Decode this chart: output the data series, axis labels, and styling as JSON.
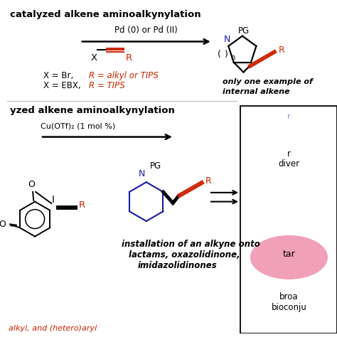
{
  "bg_color": "#ffffff",
  "title_top": "catalyzed alkene aminoalkynylation",
  "title_bottom": "yzed alkene aminoalkynylation",
  "pd_label": "Pd (0) or Pd (II)",
  "x_br_label": "X = Br,",
  "x_ebx_label": "X = EBX,",
  "r_alkyl_label": "R = alkyl or TIPS",
  "r_tips_label": "R = TIPS",
  "only_one_label": "only one example of",
  "internal_label": "internal alkene",
  "cu_label": "Cu(OTf)₂ (1 mol %)",
  "install_line1": "installation of an alkyne onto",
  "install_line2": "lactams, oxazolidinone,",
  "install_line3": "imidazolidinones",
  "bottom_red": "alkyl, and (hetero)aryl",
  "right_box_text1": "r",
  "right_box_text2": "diver",
  "right_box_text3": "tar",
  "right_box_text4": "broa",
  "right_box_text5": "bioconju",
  "black": "#000000",
  "red": "#cc2200",
  "blue_n": "#1a1aaa",
  "pink": "#f0a0b8",
  "light_blue_text": "#8888cc"
}
